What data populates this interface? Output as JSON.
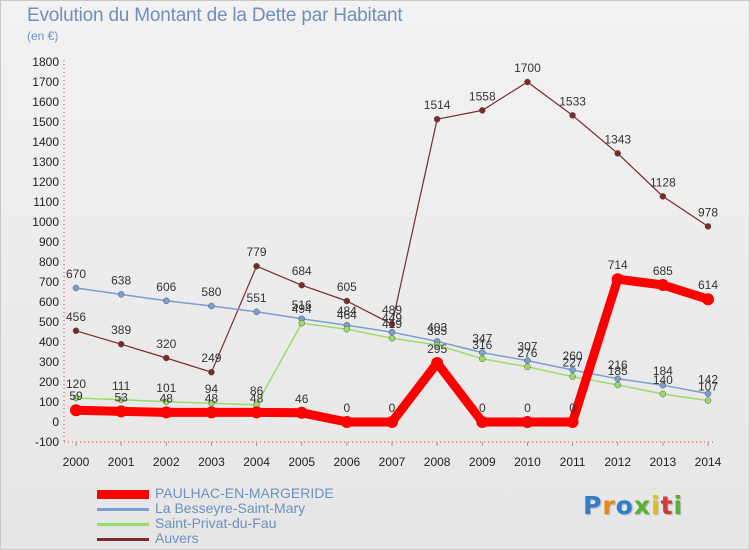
{
  "title": "Evolution du Montant de la Dette par Habitant",
  "unit": "(en €)",
  "logo": {
    "text": "Proxiti",
    "colors": [
      "#2f7fd0",
      "#e08a1a",
      "#2f7fd0",
      "#57b232",
      "#e0c01a",
      "#d23a3a",
      "#57b232"
    ]
  },
  "chart_data": {
    "type": "line",
    "x": [
      "2000",
      "2001",
      "2002",
      "2003",
      "2004",
      "2005",
      "2006",
      "2007",
      "2008",
      "2009",
      "2010",
      "2011",
      "2012",
      "2013",
      "2014"
    ],
    "ylim": [
      -100,
      1800
    ],
    "yticks": [
      -100,
      0,
      100,
      200,
      300,
      400,
      500,
      600,
      700,
      800,
      900,
      1000,
      1100,
      1200,
      1300,
      1400,
      1500,
      1600,
      1700,
      1800
    ],
    "grid": false,
    "legend_position": "bottom-left",
    "series": [
      {
        "name": "PAULHAC-EN-MARGERIDE",
        "color": "#ff0000",
        "width": 9,
        "labelColor": "#333",
        "values": [
          59,
          53,
          48,
          48,
          48,
          46,
          0,
          0,
          295,
          0,
          0,
          0,
          714,
          685,
          614
        ]
      },
      {
        "name": "La Besseyre-Saint-Mary",
        "color": "#7a9fd0",
        "width": 1.5,
        "labelColor": "#333",
        "values": [
          670,
          638,
          606,
          580,
          551,
          516,
          484,
          449,
          403,
          347,
          307,
          260,
          216,
          184,
          142
        ]
      },
      {
        "name": "Saint-Privat-du-Fau",
        "color": "#99dd66",
        "width": 1.5,
        "labelColor": "#333",
        "values": [
          120,
          111,
          101,
          94,
          86,
          494,
          464,
          419,
          385,
          316,
          276,
          227,
          185,
          140,
          107
        ]
      },
      {
        "name": "Auvers",
        "color": "#7a2a2a",
        "width": 1.2,
        "labelColor": "#333",
        "values": [
          456,
          389,
          320,
          249,
          779,
          684,
          605,
          489,
          1514,
          1558,
          1700,
          1533,
          1343,
          1128,
          978
        ]
      }
    ]
  }
}
